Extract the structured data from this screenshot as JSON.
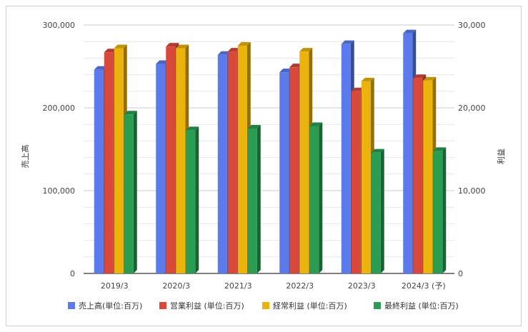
{
  "chart_data": {
    "type": "bar",
    "categories": [
      "2019/3",
      "2020/3",
      "2021/3",
      "2022/3",
      "2023/3",
      "2024/3 (予)"
    ],
    "ylabel_left": "売上高",
    "ylabel_right": "利益",
    "ylim_left": [
      0,
      300000
    ],
    "ylim_right": [
      0,
      30000
    ],
    "yticks_left": [
      "0",
      "100,000",
      "200,000",
      "300,000"
    ],
    "yticks_right": [
      "0",
      "10,000",
      "20,000",
      "30,000"
    ],
    "grid": true,
    "legend_position": "bottom",
    "bar_style": "3d",
    "series": [
      {
        "name": "売上高(単位:百万)",
        "axis": "left",
        "color": "#5b7bec",
        "values": [
          246000,
          253000,
          264000,
          243000,
          277000,
          290000
        ]
      },
      {
        "name": "営業利益 (単位:百万)",
        "axis": "right",
        "color": "#d9493b",
        "values": [
          26700,
          27400,
          26800,
          24900,
          22000,
          23600
        ]
      },
      {
        "name": "経常利益 (単位:百万)",
        "axis": "right",
        "color": "#ebb30c",
        "values": [
          27200,
          27200,
          27500,
          26800,
          23200,
          23300
        ]
      },
      {
        "name": "最終利益 (単位:百万)",
        "axis": "right",
        "color": "#2a9d53",
        "values": [
          19200,
          17300,
          17500,
          17800,
          14600,
          14800
        ]
      }
    ]
  }
}
